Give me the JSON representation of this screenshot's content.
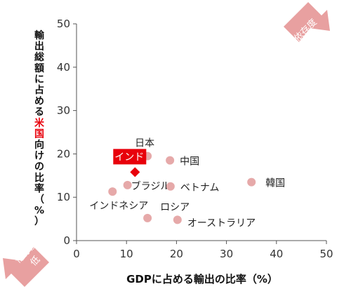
{
  "chart_data": {
    "type": "scatter",
    "xlabel": "GDPに占める輸出の比率（%）",
    "ylabel_parts": [
      "輸出総額に占める",
      "米国",
      "向けの比率（%）"
    ],
    "xlim": [
      0,
      50
    ],
    "ylim": [
      0,
      50
    ],
    "xticks": [
      "0",
      "10",
      "20",
      "30",
      "40",
      "50"
    ],
    "yticks": [
      "0",
      "10",
      "20",
      "30",
      "40",
      "50"
    ],
    "grid": false,
    "point_color": "#e6a9a9",
    "highlight_color": "#e8000b",
    "points": [
      {
        "label": "日本",
        "x": 14.2,
        "y": 19.5
      },
      {
        "label": "中国",
        "x": 18.7,
        "y": 18.5
      },
      {
        "label": "韓国",
        "x": 35.0,
        "y": 13.5
      },
      {
        "label": "ブラジル",
        "x": 10.2,
        "y": 12.8
      },
      {
        "label": "ベトナム",
        "x": 18.8,
        "y": 12.5
      },
      {
        "label": "インドネシア",
        "x": 7.2,
        "y": 11.3
      },
      {
        "label": "ロシア",
        "x": 14.2,
        "y": 5.2
      },
      {
        "label": "オーストラリア",
        "x": 20.2,
        "y": 4.8
      }
    ],
    "highlight": {
      "label": "インド",
      "x": 11.7,
      "y": 15.8
    }
  },
  "corners": {
    "high": {
      "line1": "依存度",
      "line2": "高",
      "color": "#e8a0a0"
    },
    "low": {
      "line1": "依存度",
      "line2": "低",
      "color": "#e8a0a0"
    }
  }
}
